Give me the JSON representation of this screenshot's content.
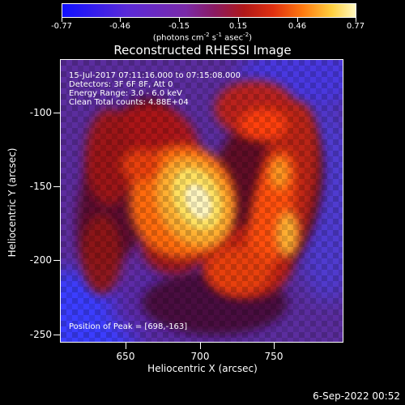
{
  "colorbar": {
    "ticks": [
      "-0.77",
      "-0.46",
      "-0.15",
      "0.15",
      "0.46",
      "0.77"
    ],
    "units_prefix": "(photons cm",
    "units_exp1": "-2",
    "units_mid": " s",
    "units_exp2": "-1",
    "units_mid2": " asec",
    "units_exp3": "-2",
    "units_suffix": ")"
  },
  "title": "Reconstructed RHESSI Image",
  "annotations": {
    "time_range": "15-Jul-2017 07:11:16.000 to 07:15:08.000",
    "detectors": "Detectors: 3F 6F 8F, Att 0",
    "energy": "Energy Range: 3.0 - 6.0 keV",
    "clean": "Clean    Total counts: 4.88E+04",
    "peak": "Position of Peak = [698,-163]"
  },
  "axes": {
    "xtitle": "Heliocentric X (arcsec)",
    "ytitle": "Heliocentric Y (arcsec)",
    "xticks": [
      "650",
      "700",
      "750"
    ],
    "yticks": [
      "-100",
      "-150",
      "-200",
      "-250"
    ]
  },
  "datestamp": "6-Sep-2022 00:52",
  "colors": {
    "colormap": [
      "#1010ff",
      "#5a2ad8",
      "#7a2aa8",
      "#8a1a60",
      "#b01818",
      "#e03010",
      "#ff7a10",
      "#ffd040",
      "#fff8c0"
    ]
  }
}
